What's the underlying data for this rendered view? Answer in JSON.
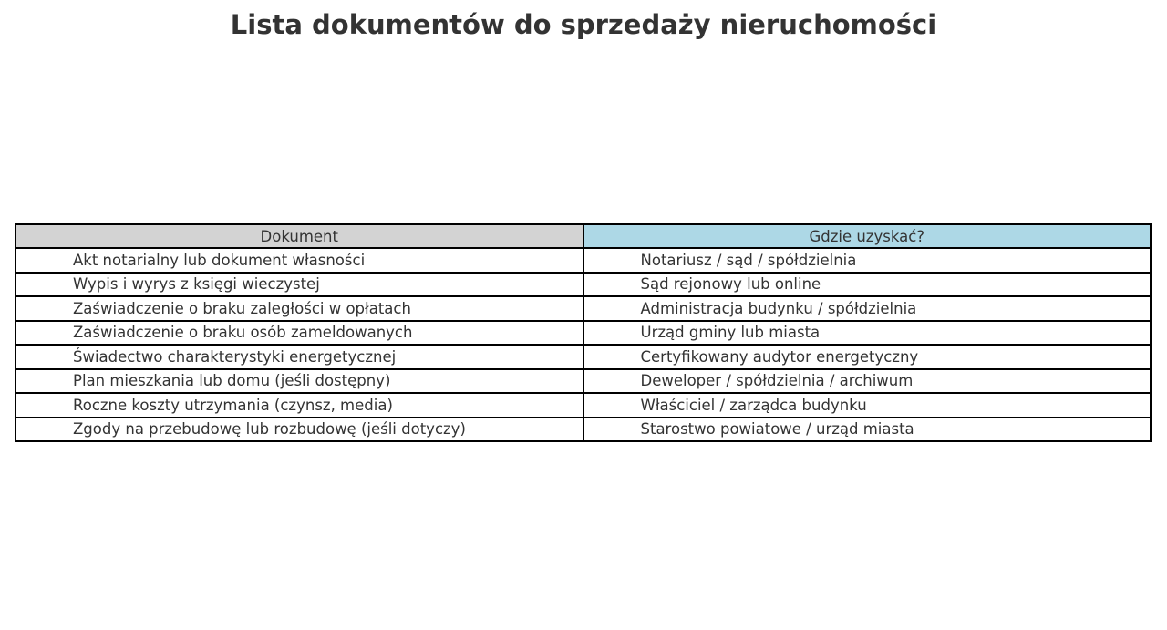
{
  "page": {
    "title": "Lista dokumentów do sprzedaży nieruchomości"
  },
  "colors": {
    "header_dokument_bg": "#d3d3d3",
    "header_gdzie_bg": "#add8e6",
    "border": "#000000",
    "text": "#333333",
    "background": "#ffffff"
  },
  "chart_data": {
    "type": "table",
    "title": "Lista dokumentów do sprzedaży nieruchomości",
    "columns": [
      "Dokument",
      "Gdzie uzyskać?"
    ],
    "rows": [
      [
        "Akt notarialny lub dokument własności",
        "Notariusz / sąd / spółdzielnia"
      ],
      [
        "Wypis i wyrys z księgi wieczystej",
        "Sąd rejonowy lub online"
      ],
      [
        "Zaświadczenie o braku zaległości w opłatach",
        "Administracja budynku / spółdzielnia"
      ],
      [
        "Zaświadczenie o braku osób zameldowanych",
        "Urząd gminy lub miasta"
      ],
      [
        "Świadectwo charakterystyki energetycznej",
        "Certyfikowany audytor energetyczny"
      ],
      [
        "Plan mieszkania lub domu (jeśli dostępny)",
        "Deweloper / spółdzielnia / archiwum"
      ],
      [
        "Roczne koszty utrzymania (czynsz, media)",
        "Właściciel / zarządca budynku"
      ],
      [
        "Zgody na przebudowę lub rozbudowę (jeśli dotyczy)",
        "Starostwo powiatowe / urząd miasta"
      ]
    ],
    "layout": {
      "header_backgrounds": [
        "#d3d3d3",
        "#add8e6"
      ],
      "column_split": "50/50",
      "grid": "all-borders"
    }
  }
}
